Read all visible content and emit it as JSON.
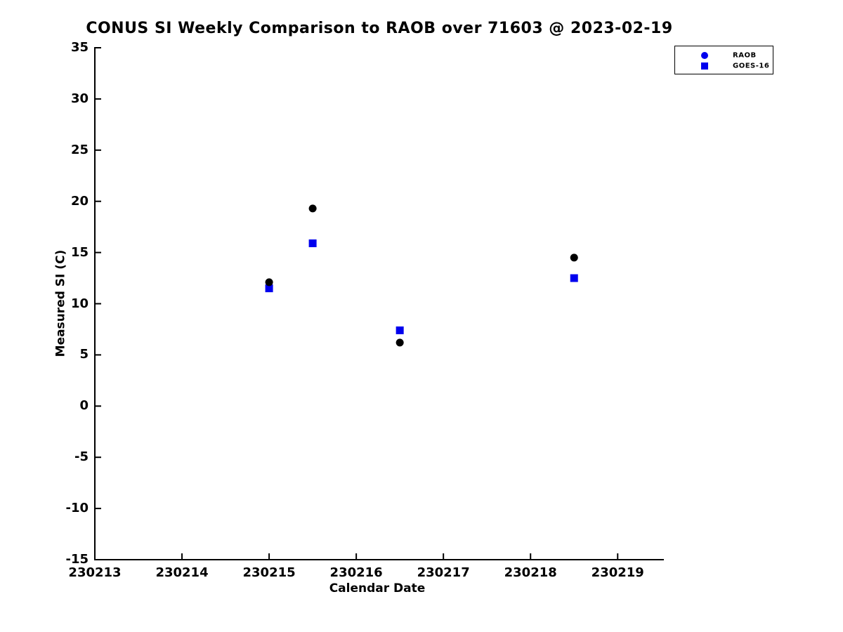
{
  "figure": {
    "background": "#ffffff",
    "text_color": "#000000"
  },
  "chart_data": {
    "type": "scatter",
    "title": "CONUS SI Weekly Comparison to RAOB over 71603 @ 2023-02-19",
    "xlabel": "Calendar Date",
    "ylabel": "Measured SI (C)",
    "xlim": [
      230213,
      230219.53
    ],
    "ylim": [
      -15,
      35
    ],
    "x_ticks": [
      230213,
      230214,
      230215,
      230216,
      230217,
      230218,
      230219
    ],
    "y_ticks": [
      -15,
      -10,
      -5,
      0,
      5,
      10,
      15,
      20,
      25,
      30,
      35
    ],
    "grid": false,
    "legend_position": "top-right",
    "series": [
      {
        "name": "RAOB",
        "marker": "circle",
        "plot_color": "#000000",
        "legend_color": "#0000ee",
        "x": [
          230215.0,
          230215.5,
          230216.5,
          230218.5
        ],
        "y": [
          12.1,
          19.3,
          6.2,
          14.5
        ]
      },
      {
        "name": "GOES-16",
        "marker": "square",
        "plot_color": "#0000ee",
        "legend_color": "#0000ee",
        "x": [
          230215.0,
          230215.5,
          230216.5,
          230218.5
        ],
        "y": [
          11.5,
          15.9,
          7.4,
          12.5
        ]
      }
    ]
  }
}
